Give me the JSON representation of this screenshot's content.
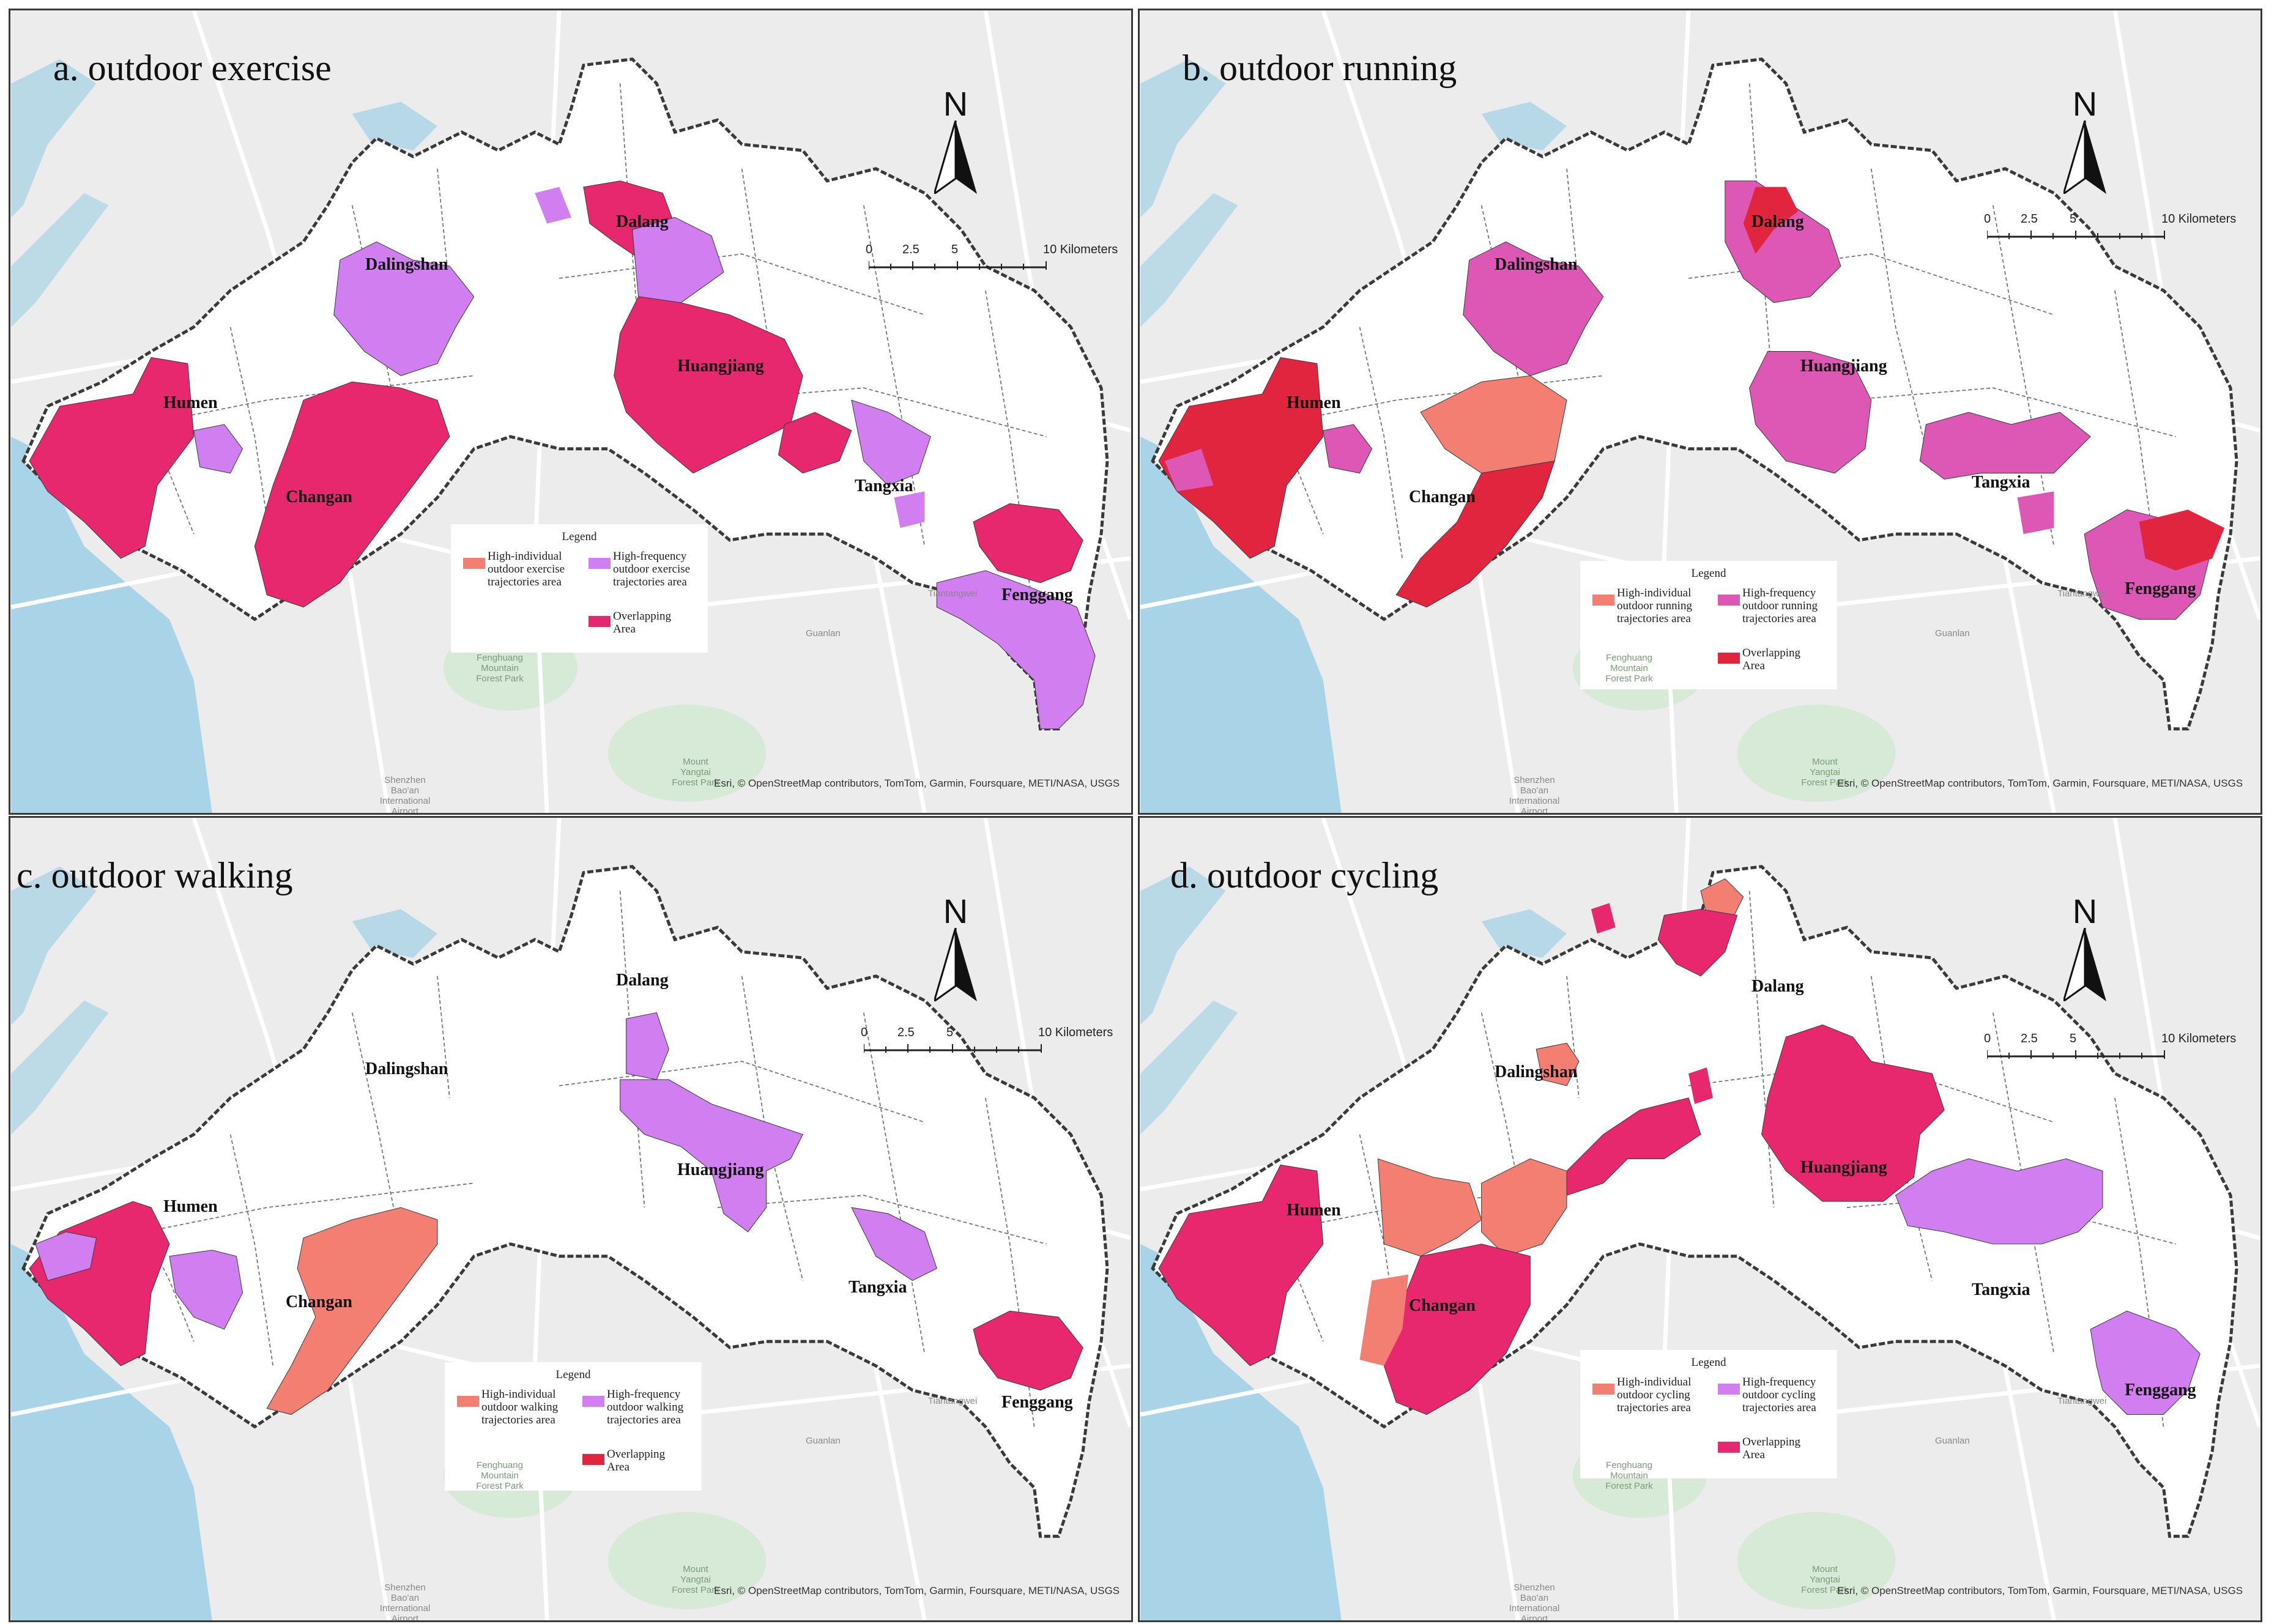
{
  "colors": {
    "water": "#a9d3e6",
    "land": "#ececec",
    "park": "#d7ead7",
    "boundary": "#3a3a3a",
    "purple": "#d17ff0",
    "overlap_a": "#e8286e",
    "overlap_b": "#e2253e",
    "individual": "#f27f72",
    "frequency_b": "#dc58b4",
    "town_fill_base": "#ffffff"
  },
  "panels": [
    {
      "id": "a",
      "title": "a. outdoor exercise",
      "legend": {
        "title": "Legend",
        "individual": "High-individual outdoor exercise trajectories area",
        "frequency": "High-frequency outdoor exercise trajectories area",
        "overlap": "Overlapping Area"
      },
      "north": "N",
      "scale": {
        "labels": [
          "0",
          "2.5",
          "5",
          "10 Kilometers"
        ]
      },
      "attribution": "Esri, © OpenStreetMap contributors, TomTom, Garmin, Foursquare, METI/NASA, USGS",
      "towns": [
        "Dalang",
        "Dalingshan",
        "Huangjiang",
        "Humen",
        "Changan",
        "Tangxia",
        "Fenggang"
      ]
    },
    {
      "id": "b",
      "title": "b. outdoor running",
      "legend": {
        "title": "Legend",
        "individual": "High-individual outdoor running trajectories area",
        "frequency": "High-frequency outdoor running trajectories area",
        "overlap": "Overlapping Area"
      },
      "north": "N",
      "scale": {
        "labels": [
          "0",
          "2.5",
          "5",
          "10 Kilometers"
        ]
      },
      "attribution": "Esri, © OpenStreetMap contributors, TomTom, Garmin, Foursquare, METI/NASA, USGS",
      "towns": [
        "Dalang",
        "Dalingshan",
        "Huangjiang",
        "Humen",
        "Changan",
        "Tangxia",
        "Fenggang"
      ]
    },
    {
      "id": "c",
      "title": "c. outdoor walking",
      "legend": {
        "title": "Legend",
        "individual": "High-individual outdoor walking trajectories area",
        "frequency": "High-frequency outdoor walking trajectories area",
        "overlap": "Overlapping Area"
      },
      "north": "N",
      "scale": {
        "labels": [
          "0",
          "2.5",
          "5",
          "10 Kilometers"
        ]
      },
      "attribution": "Esri, © OpenStreetMap contributors, TomTom, Garmin, Foursquare, METI/NASA, USGS",
      "towns": [
        "Dalang",
        "Dalingshan",
        "Huangjiang",
        "Humen",
        "Changan",
        "Tangxia",
        "Fenggang"
      ]
    },
    {
      "id": "d",
      "title": "d. outdoor cycling",
      "legend": {
        "title": "Legend",
        "individual": "High-individual outdoor cycling trajectories area",
        "frequency": "High-frequency outdoor cycling trajectories area",
        "overlap": "Overlapping Area"
      },
      "north": "N",
      "scale": {
        "labels": [
          "0",
          "2.5",
          "5",
          "10 Kilometers"
        ]
      },
      "attribution": "Esri, © OpenStreetMap contributors, TomTom, Garmin, Foursquare, METI/NASA, USGS",
      "towns": [
        "Dalang",
        "Dalingshan",
        "Huangjiang",
        "Humen",
        "Changan",
        "Tangxia",
        "Fenggang"
      ]
    }
  ],
  "basemap_labels": {
    "tiantangwei": "Tiantangwei",
    "guanlan": "Guanlan",
    "fenghuang": "Fenghuang Mountain Forest Park",
    "yangtai": "Mount Yangtai Forest Park",
    "airport": "Shenzhen Bao'an International Airport"
  }
}
